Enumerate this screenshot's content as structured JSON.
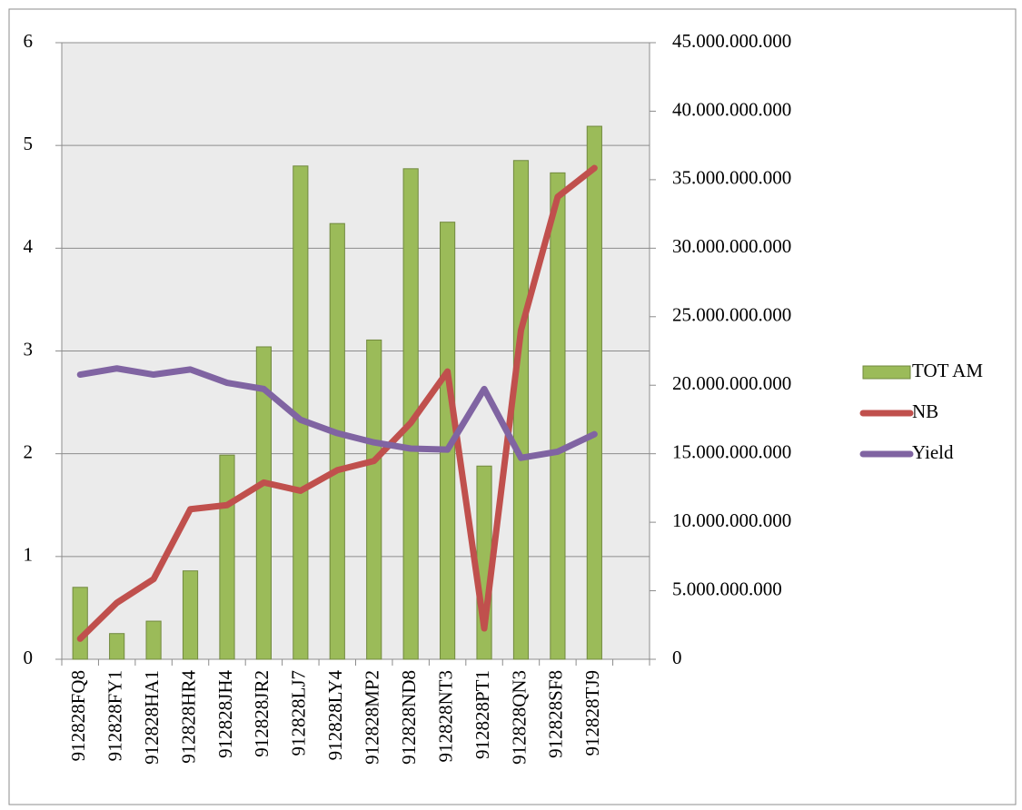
{
  "chart_data": {
    "type": "bar",
    "categories": [
      "912828FQ8",
      "912828FY1",
      "912828HA1",
      "912828HR4",
      "912828JH4",
      "912828JR2",
      "912828LJ7",
      "912828LY4",
      "912828MP2",
      "912828ND8",
      "912828NT3",
      "912828PT1",
      "912828QN3",
      "912828SF8",
      "912828TJ9",
      null
    ],
    "series": [
      {
        "name": "TOT AM",
        "type": "bar",
        "axis": "y2",
        "color": "#9bbb59",
        "values": [
          5250000000,
          1875000000,
          2780000000,
          6450000000,
          14900000000,
          22800000000,
          36000000000,
          31800000000,
          23300000000,
          35800000000,
          31900000000,
          14100000000,
          36400000000,
          35500000000,
          38900000000,
          null
        ]
      },
      {
        "name": "NB",
        "type": "line",
        "color": "#c0504d",
        "values": [
          0.2,
          0.55,
          0.78,
          1.46,
          1.5,
          1.72,
          1.64,
          1.84,
          1.93,
          2.3,
          2.8,
          0.3,
          3.2,
          4.5,
          4.78,
          null
        ]
      },
      {
        "name": "Yield",
        "type": "line",
        "color": "#8064a2",
        "values": [
          2.77,
          2.83,
          2.77,
          2.82,
          2.69,
          2.63,
          2.33,
          2.2,
          2.11,
          2.05,
          2.04,
          2.63,
          1.96,
          2.02,
          2.19,
          null
        ]
      }
    ],
    "ylim": [
      0,
      6
    ],
    "yticks": [
      0,
      1,
      2,
      3,
      4,
      5,
      6
    ],
    "y2lim": [
      0,
      45000000000
    ],
    "y2ticks": [
      0,
      {
        "value": 5000000000,
        "label": "5.000.000.000"
      },
      {
        "value": 10000000000,
        "label": "10.000.000.000"
      },
      {
        "value": 15000000000,
        "label": "15.000.000.000"
      },
      {
        "value": 20000000000,
        "label": "20.000.000.000"
      },
      {
        "value": 25000000000,
        "label": "25.000.000.000"
      },
      {
        "value": 30000000000,
        "label": "30.000.000.000"
      },
      {
        "value": 35000000000,
        "label": "35.000.000.000"
      },
      {
        "value": 40000000000,
        "label": "40.000.000.000"
      },
      {
        "value": 45000000000,
        "label": "45.000.000.000"
      }
    ],
    "grid": true,
    "legend": "right"
  }
}
